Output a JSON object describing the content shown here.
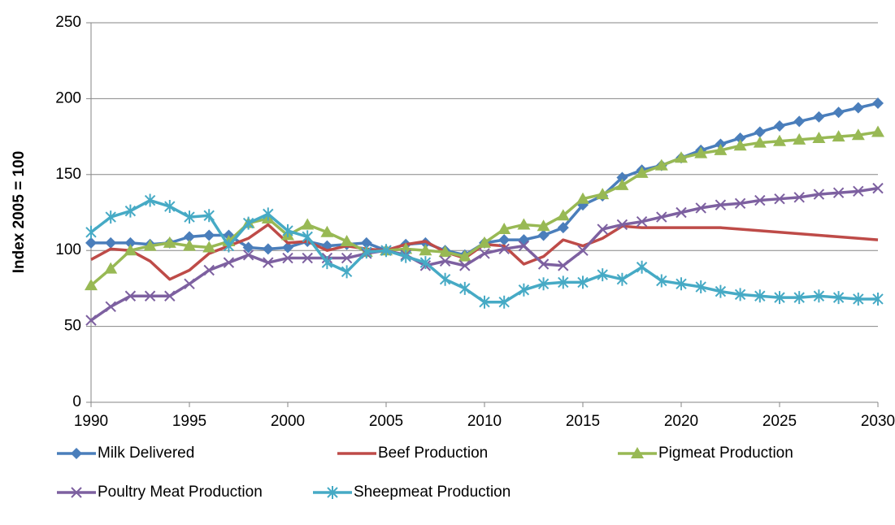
{
  "chart_data": {
    "type": "line",
    "y_label": "Index  2005 = 100",
    "x": [
      1990,
      1991,
      1992,
      1993,
      1994,
      1995,
      1996,
      1997,
      1998,
      1999,
      2000,
      2001,
      2002,
      2003,
      2004,
      2005,
      2006,
      2007,
      2008,
      2009,
      2010,
      2011,
      2012,
      2013,
      2014,
      2015,
      2016,
      2017,
      2018,
      2019,
      2020,
      2021,
      2022,
      2023,
      2024,
      2025,
      2026,
      2027,
      2028,
      2029,
      2030
    ],
    "xlim": [
      1990,
      2030
    ],
    "xticks": [
      1990,
      1995,
      2000,
      2005,
      2010,
      2015,
      2020,
      2025,
      2030
    ],
    "ylim": [
      0,
      250
    ],
    "yticks": [
      0,
      50,
      100,
      150,
      200,
      250
    ],
    "grid": true,
    "legend": "bottom",
    "series": [
      {
        "name": "Milk Delivered",
        "color": "#4a7ebb",
        "marker": "diamond",
        "values": [
          105,
          105,
          105,
          104,
          105,
          109,
          110,
          110,
          102,
          101,
          102,
          106,
          103,
          104,
          105,
          100,
          104,
          105,
          100,
          97,
          105,
          107,
          107,
          110,
          115,
          130,
          136,
          148,
          153,
          156,
          161,
          166,
          170,
          174,
          178,
          182,
          185,
          188,
          191,
          194,
          197
        ]
      },
      {
        "name": "Beef Production",
        "color": "#be4b48",
        "marker": "none",
        "values": [
          94,
          101,
          100,
          93,
          81,
          87,
          98,
          103,
          108,
          117,
          105,
          106,
          100,
          103,
          101,
          100,
          104,
          106,
          99,
          95,
          104,
          103,
          91,
          96,
          107,
          103,
          108,
          116,
          115,
          115,
          115,
          115,
          115,
          114,
          113,
          112,
          111,
          110,
          109,
          108,
          107
        ]
      },
      {
        "name": "Pigmeat Production",
        "color": "#98b954",
        "marker": "triangle",
        "values": [
          77,
          88,
          100,
          103,
          105,
          103,
          102,
          106,
          118,
          121,
          110,
          117,
          112,
          106,
          99,
          100,
          101,
          100,
          99,
          96,
          105,
          114,
          117,
          116,
          123,
          134,
          137,
          143,
          151,
          156,
          161,
          164,
          166,
          169,
          171,
          172,
          173,
          174,
          175,
          176,
          178
        ]
      },
      {
        "name": "Poultry Meat Production",
        "color": "#7d60a0",
        "marker": "x",
        "values": [
          54,
          63,
          70,
          70,
          70,
          78,
          87,
          92,
          97,
          92,
          95,
          95,
          95,
          95,
          98,
          100,
          97,
          90,
          93,
          90,
          98,
          101,
          103,
          91,
          90,
          100,
          114,
          117,
          119,
          122,
          125,
          128,
          130,
          131,
          133,
          134,
          135,
          137,
          138,
          139,
          141
        ]
      },
      {
        "name": "Sheepmeat Production",
        "color": "#46aac5",
        "marker": "star",
        "values": [
          112,
          122,
          126,
          133,
          129,
          122,
          123,
          103,
          118,
          124,
          113,
          109,
          92,
          86,
          99,
          100,
          96,
          92,
          81,
          75,
          66,
          66,
          74,
          78,
          79,
          79,
          84,
          81,
          89,
          80,
          78,
          76,
          73,
          71,
          70,
          69,
          69,
          70,
          69,
          68,
          68
        ]
      }
    ]
  }
}
